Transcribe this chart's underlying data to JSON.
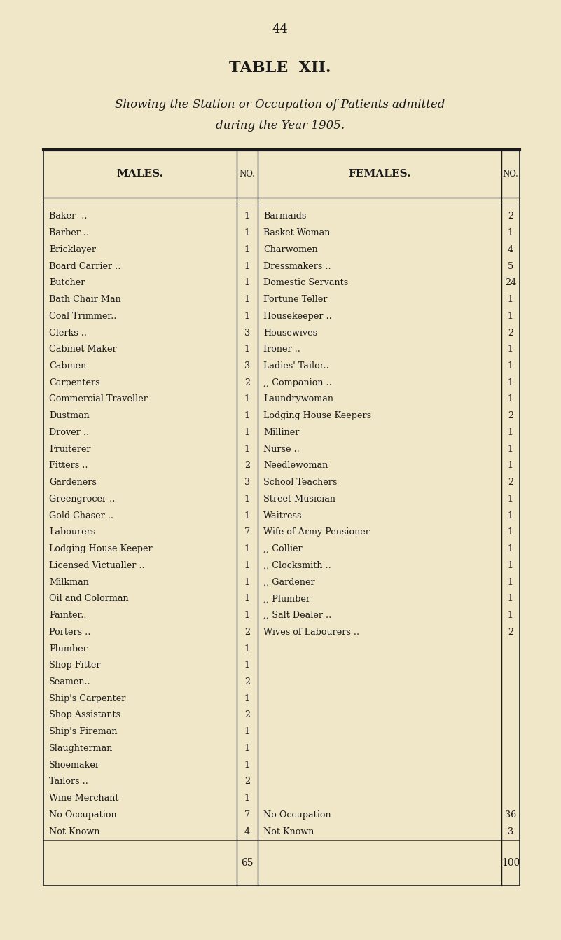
{
  "page_number": "44",
  "title": "TABLE  XII.",
  "subtitle_line1": "Showing the Station or Occupation of Patients admitted",
  "subtitle_line2": "during the Year 1905.",
  "bg_color": "#f0e6c8",
  "text_color": "#1a1a1a",
  "males_header": "MALES.",
  "females_header": "FEMALES.",
  "no_header": "NO.",
  "males_data": [
    [
      "Baker  ..",
      "1"
    ],
    [
      "Barber ..",
      "1"
    ],
    [
      "Bricklayer",
      "1"
    ],
    [
      "Board Carrier ..",
      "1"
    ],
    [
      "Butcher",
      "1"
    ],
    [
      "Bath Chair Man",
      "1"
    ],
    [
      "Coal Trimmer..",
      "1"
    ],
    [
      "Clerks ..",
      "3"
    ],
    [
      "Cabinet Maker",
      "1"
    ],
    [
      "Cabmen",
      "3"
    ],
    [
      "Carpenters",
      "2"
    ],
    [
      "Commercial Traveller",
      "1"
    ],
    [
      "Dustman",
      "1"
    ],
    [
      "Drover ..",
      "1"
    ],
    [
      "Fruiterer",
      "1"
    ],
    [
      "Fitters ..",
      "2"
    ],
    [
      "Gardeners",
      "3"
    ],
    [
      "Greengrocer ..",
      "1"
    ],
    [
      "Gold Chaser ..",
      "1"
    ],
    [
      "Labourers",
      "7"
    ],
    [
      "Lodging House Keeper",
      "1"
    ],
    [
      "Licensed Victualler ..",
      "1"
    ],
    [
      "Milkman",
      "1"
    ],
    [
      "Oil and Colorman",
      "1"
    ],
    [
      "Painter..",
      "1"
    ],
    [
      "Porters ..",
      "2"
    ],
    [
      "Plumber",
      "1"
    ],
    [
      "Shop Fitter",
      "1"
    ],
    [
      "Seamen..",
      "2"
    ],
    [
      "Ship's Carpenter",
      "1"
    ],
    [
      "Shop Assistants",
      "2"
    ],
    [
      "Ship's Fireman",
      "1"
    ],
    [
      "Slaughterman",
      "1"
    ],
    [
      "Shoemaker",
      "1"
    ],
    [
      "Tailors ..",
      "2"
    ],
    [
      "Wine Merchant",
      "1"
    ],
    [
      "No Occupation",
      "7"
    ],
    [
      "Not Known",
      "4"
    ]
  ],
  "males_total": "65",
  "females_data": [
    [
      "Barmaids",
      "2"
    ],
    [
      "Basket Woman",
      "1"
    ],
    [
      "Charwomen",
      "4"
    ],
    [
      "Dressmakers ..",
      "5"
    ],
    [
      "Domestic Servants",
      "24"
    ],
    [
      "Fortune Teller",
      "1"
    ],
    [
      "Housekeeper ..",
      "1"
    ],
    [
      "Housewives",
      "2"
    ],
    [
      "Ironer ..",
      "1"
    ],
    [
      "Ladies' Tailor..",
      "1"
    ],
    [
      ",, Companion ..",
      "1"
    ],
    [
      "Laundrywoman",
      "1"
    ],
    [
      "Lodging House Keepers",
      "2"
    ],
    [
      "Milliner",
      "1"
    ],
    [
      "Nurse ..",
      "1"
    ],
    [
      "Needlewoman",
      "1"
    ],
    [
      "School Teachers",
      "2"
    ],
    [
      "Street Musician",
      "1"
    ],
    [
      "Waitress",
      "1"
    ],
    [
      "Wife of Army Pensioner",
      "1"
    ],
    [
      ",, Collier",
      "1"
    ],
    [
      ",, Clocksmith ..",
      "1"
    ],
    [
      ",, Gardener",
      "1"
    ],
    [
      ",, Plumber",
      "1"
    ],
    [
      ",, Salt Dealer ..",
      "1"
    ],
    [
      "Wives of Labourers ..",
      "2"
    ],
    [
      "",
      ""
    ],
    [
      "",
      ""
    ],
    [
      "",
      ""
    ],
    [
      "",
      ""
    ],
    [
      "",
      ""
    ],
    [
      "",
      ""
    ],
    [
      "",
      ""
    ],
    [
      "",
      ""
    ],
    [
      "",
      ""
    ],
    [
      "",
      ""
    ],
    [
      "No Occupation",
      "36"
    ],
    [
      "Not Known",
      "3"
    ]
  ],
  "females_total": "100"
}
